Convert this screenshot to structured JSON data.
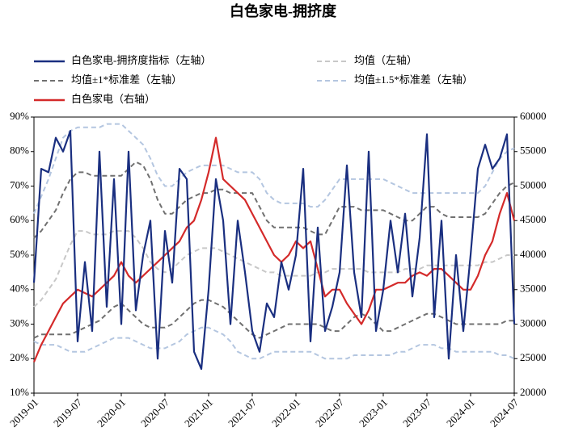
{
  "chart_data": {
    "type": "line",
    "title": "白色家电-拥挤度",
    "categories": [
      "2019-01",
      null,
      null,
      null,
      null,
      null,
      "2019-07",
      null,
      null,
      null,
      null,
      null,
      "2020-01",
      null,
      null,
      null,
      null,
      null,
      "2020-07",
      null,
      null,
      null,
      null,
      null,
      "2021-01",
      null,
      null,
      null,
      null,
      null,
      "2021-07",
      null,
      null,
      null,
      null,
      null,
      "2022-01",
      null,
      null,
      null,
      null,
      null,
      "2022-07",
      null,
      null,
      null,
      null,
      null,
      "2023-01",
      null,
      null,
      null,
      null,
      null,
      "2023-07",
      null,
      null,
      null,
      null,
      null,
      "2024-01",
      null,
      null,
      null,
      null,
      null,
      "2024-07"
    ],
    "ylim": [
      10,
      90
    ],
    "yticks": [
      {
        "value": 10,
        "label": "10%"
      },
      {
        "value": 20,
        "label": "20%"
      },
      {
        "value": 30,
        "label": "30%"
      },
      {
        "value": 40,
        "label": "40%"
      },
      {
        "value": 50,
        "label": "50%"
      },
      {
        "value": 60,
        "label": "60%"
      },
      {
        "value": 70,
        "label": "70%"
      },
      {
        "value": 80,
        "label": "80%"
      },
      {
        "value": 90,
        "label": "90%"
      }
    ],
    "y2lim": [
      20000,
      60000
    ],
    "y2ticks": [
      20000,
      25000,
      30000,
      35000,
      40000,
      45000,
      50000,
      55000,
      60000
    ],
    "series": [
      {
        "name": "白色家电-拥挤度指标（左轴）",
        "color": "#1a2f80",
        "dash": "solid",
        "values": [
          42,
          75,
          74,
          84,
          80,
          86,
          25,
          48,
          28,
          80,
          35,
          72,
          30,
          80,
          34,
          50,
          60,
          20,
          57,
          42,
          75,
          72,
          22,
          17,
          40,
          72,
          60,
          30,
          60,
          45,
          28,
          22,
          36,
          32,
          48,
          40,
          50,
          75,
          25,
          58,
          28,
          35,
          45,
          76,
          45,
          32,
          80,
          28,
          40,
          60,
          45,
          62,
          38,
          55,
          85,
          32,
          60,
          20,
          50,
          28,
          50,
          75,
          82,
          75,
          78,
          85,
          30
        ]
      },
      {
        "name": "均值（左轴）",
        "color": "#c8c8c8",
        "dash": "dashed",
        "values": [
          35,
          37,
          40,
          43,
          48,
          53,
          57,
          57,
          56,
          56,
          56,
          57,
          57,
          57,
          55,
          52,
          48,
          46,
          45,
          46,
          48,
          50,
          51,
          52,
          52,
          52,
          51,
          50,
          49,
          48,
          47,
          46,
          45,
          45,
          44,
          44,
          44,
          44,
          44,
          45,
          45,
          46,
          46,
          46,
          46,
          46,
          45,
          45,
          45,
          45,
          45,
          46,
          46,
          46,
          47,
          47,
          47,
          47,
          47,
          47,
          47,
          47,
          48,
          48,
          49,
          50,
          50
        ]
      },
      {
        "name": "均值±1*标准差（左轴）",
        "color": "#707070",
        "dash": "dashed",
        "upper": [
          55,
          57,
          60,
          63,
          68,
          72,
          74,
          74,
          73,
          73,
          73,
          73,
          73,
          75,
          77,
          76,
          72,
          66,
          62,
          62,
          64,
          66,
          67,
          68,
          68,
          69,
          69,
          68,
          68,
          68,
          68,
          64,
          60,
          58,
          58,
          58,
          58,
          58,
          57,
          56,
          56,
          60,
          64,
          64,
          64,
          63,
          63,
          63,
          63,
          62,
          61,
          60,
          60,
          62,
          64,
          64,
          62,
          61,
          61,
          61,
          61,
          61,
          62,
          65,
          68,
          70,
          71
        ],
        "lower": [
          26,
          27,
          27,
          27,
          27,
          27,
          28,
          29,
          30,
          31,
          33,
          35,
          36,
          34,
          32,
          30,
          29,
          29,
          29,
          30,
          32,
          34,
          36,
          37,
          37,
          36,
          35,
          33,
          31,
          29,
          27,
          26,
          27,
          28,
          29,
          30,
          30,
          30,
          30,
          30,
          29,
          28,
          28,
          30,
          32,
          33,
          32,
          30,
          28,
          28,
          29,
          30,
          31,
          32,
          33,
          33,
          32,
          31,
          30,
          30,
          30,
          30,
          30,
          30,
          30,
          31,
          31
        ]
      },
      {
        "name": "均值±1.5*标准差（左轴）",
        "color": "#b4c6e0",
        "dash": "dashed",
        "upper": [
          62,
          67,
          72,
          78,
          84,
          86,
          87,
          87,
          87,
          87,
          88,
          88,
          88,
          86,
          84,
          82,
          78,
          73,
          70,
          70,
          72,
          74,
          75,
          76,
          76,
          76,
          76,
          75,
          74,
          74,
          74,
          72,
          68,
          66,
          65,
          65,
          65,
          65,
          64,
          64,
          66,
          69,
          72,
          72,
          72,
          72,
          72,
          72,
          72,
          71,
          70,
          69,
          68,
          68,
          68,
          68,
          68,
          68,
          68,
          68,
          68,
          68,
          70,
          74,
          78,
          80,
          81
        ],
        "lower": [
          25,
          24,
          24,
          24,
          23,
          22,
          22,
          22,
          23,
          24,
          25,
          26,
          26,
          26,
          25,
          24,
          23,
          23,
          23,
          24,
          25,
          27,
          28,
          29,
          29,
          28,
          27,
          25,
          22,
          21,
          20,
          20,
          21,
          22,
          22,
          22,
          22,
          22,
          22,
          21,
          20,
          20,
          20,
          20,
          21,
          21,
          21,
          21,
          21,
          21,
          22,
          22,
          23,
          24,
          24,
          24,
          23,
          23,
          22,
          22,
          22,
          22,
          22,
          22,
          21,
          21,
          20
        ]
      },
      {
        "name": "白色家电（右轴）",
        "color": "#d42a2a",
        "dash": "solid",
        "axis": "y2",
        "values": [
          24500,
          27000,
          29000,
          31000,
          33000,
          34000,
          35000,
          34500,
          34000,
          35000,
          36000,
          37000,
          39000,
          37000,
          36000,
          37000,
          38000,
          39000,
          40000,
          41000,
          42000,
          44000,
          45000,
          48000,
          52000,
          57000,
          51000,
          50000,
          49000,
          48000,
          46000,
          44000,
          42000,
          40000,
          39000,
          40000,
          42000,
          41000,
          42000,
          38000,
          34000,
          35000,
          35000,
          33000,
          31500,
          30000,
          32000,
          35000,
          35000,
          35500,
          36000,
          36000,
          37000,
          37500,
          37000,
          38000,
          38000,
          37000,
          36000,
          35000,
          35000,
          37000,
          40000,
          42000,
          46000,
          49000,
          45000
        ]
      }
    ]
  }
}
